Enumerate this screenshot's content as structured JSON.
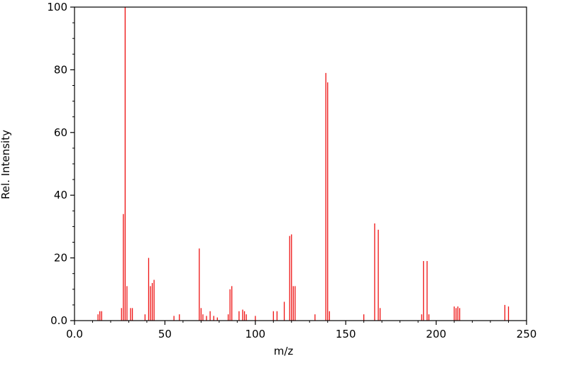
{
  "chart_data": {
    "type": "bar",
    "subtype": "mass-spectrum-stick-plot",
    "title": "",
    "xlabel": "m/z",
    "ylabel": "Rel. Intensity",
    "xlim": [
      0,
      250
    ],
    "ylim": [
      0,
      100
    ],
    "grid": false,
    "legend": "none",
    "stick_color": "#ee1111",
    "frame_color": "#000000",
    "background": "#ffffff",
    "x_ticks": {
      "values": [
        0,
        50,
        100,
        150,
        200,
        250
      ],
      "labels": [
        "0.0",
        "50",
        "100",
        "150",
        "200",
        "250"
      ],
      "minor_step": 10
    },
    "y_ticks": {
      "values": [
        0,
        20,
        40,
        60,
        80,
        100
      ],
      "labels": [
        "0.0",
        "20",
        "40",
        "60",
        "80",
        "100"
      ],
      "minor_step": 5
    },
    "peaks": [
      [
        13,
        2
      ],
      [
        14,
        3
      ],
      [
        15,
        3
      ],
      [
        26,
        4
      ],
      [
        27,
        34
      ],
      [
        28,
        100
      ],
      [
        29,
        11
      ],
      [
        31,
        4
      ],
      [
        32,
        4
      ],
      [
        39,
        2
      ],
      [
        41,
        20
      ],
      [
        42,
        11
      ],
      [
        43,
        12
      ],
      [
        44,
        13
      ],
      [
        55,
        1.5
      ],
      [
        58,
        2
      ],
      [
        69,
        23
      ],
      [
        70,
        4
      ],
      [
        71,
        2
      ],
      [
        73,
        1.5
      ],
      [
        75,
        3
      ],
      [
        77,
        1.5
      ],
      [
        79,
        1
      ],
      [
        85,
        2
      ],
      [
        86,
        10
      ],
      [
        87,
        11
      ],
      [
        91,
        3
      ],
      [
        93,
        3.5
      ],
      [
        94,
        3
      ],
      [
        95,
        2
      ],
      [
        100,
        1.5
      ],
      [
        110,
        3
      ],
      [
        112,
        3
      ],
      [
        116,
        6
      ],
      [
        119,
        27
      ],
      [
        120,
        27.5
      ],
      [
        121,
        11
      ],
      [
        122,
        11
      ],
      [
        133,
        2
      ],
      [
        139,
        79
      ],
      [
        140,
        76
      ],
      [
        141,
        3
      ],
      [
        160,
        2
      ],
      [
        166,
        31
      ],
      [
        168,
        29
      ],
      [
        169,
        4
      ],
      [
        192,
        2
      ],
      [
        193,
        19
      ],
      [
        195,
        19
      ],
      [
        196,
        2
      ],
      [
        210,
        4.5
      ],
      [
        211,
        4
      ],
      [
        212,
        4.5
      ],
      [
        213,
        4
      ],
      [
        238,
        5
      ],
      [
        240,
        4.5
      ]
    ]
  }
}
